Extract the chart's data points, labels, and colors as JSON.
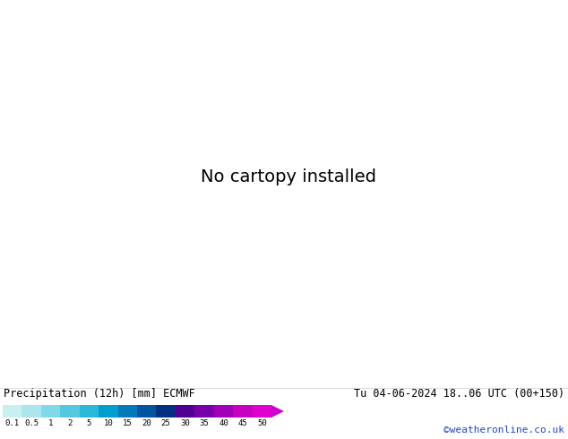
{
  "title_left": "Precipitation (12h) [mm] ECMWF",
  "title_right": "Tu 04-06-2024 18..06 UTC (00+150)",
  "credit": "©weatheronline.co.uk",
  "colorbar_colors": [
    "#c8f0f0",
    "#aae6ee",
    "#80d8e8",
    "#55c8e0",
    "#2ab8d8",
    "#009fd0",
    "#007ab8",
    "#0055a0",
    "#003080",
    "#500090",
    "#7800a8",
    "#a000b8",
    "#c800c0",
    "#e000d0"
  ],
  "colorbar_labels": [
    "0.1",
    "0.5",
    "1",
    "2",
    "5",
    "10",
    "15",
    "20",
    "25",
    "30",
    "35",
    "40",
    "45",
    "50"
  ],
  "map_bg": "#e0e0e4",
  "sea_color": "#e0e0e4",
  "land_color": "#c0c8c0",
  "isobar_color": "#dd0000",
  "blue_line_color": "#2244cc",
  "text_color": "#000000",
  "blue_text_color": "#2244cc",
  "bottom_bg": "#ffffff",
  "precip_vlight": "#c8eef2",
  "precip_light": "#90d8ec",
  "precip_mid": "#55b8e0",
  "precip_blue": "#2090c8",
  "precip_darkblue": "#1060a0",
  "land_green": "#b8d898",
  "land_green2": "#90c878"
}
